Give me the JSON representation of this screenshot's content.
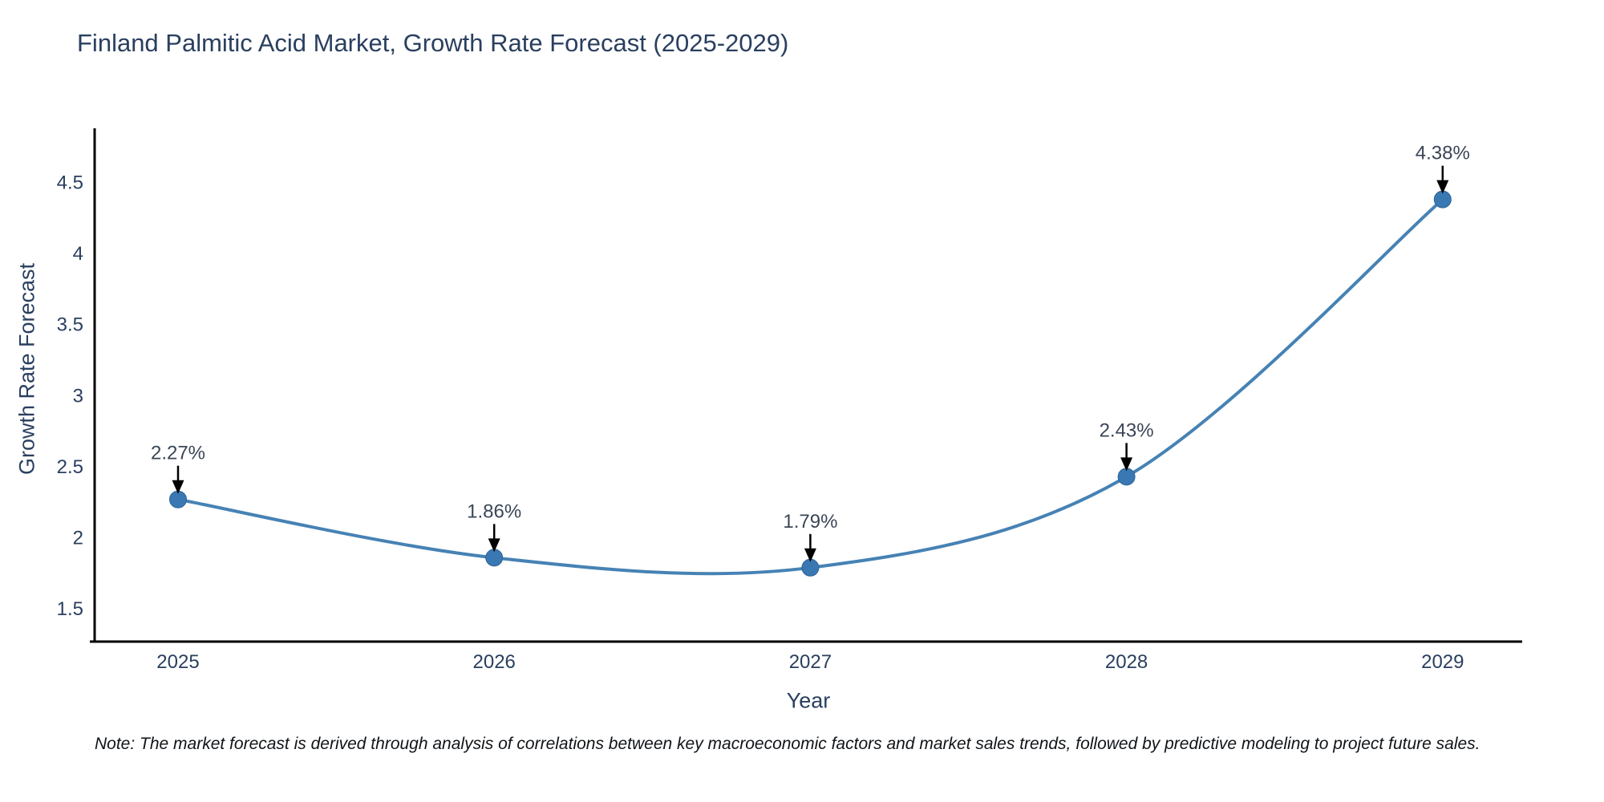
{
  "chart_data": {
    "type": "line",
    "title": "Finland Palmitic Acid Market, Growth Rate Forecast (2025-2029)",
    "xlabel": "Year",
    "ylabel": "Growth Rate Forecast",
    "categories": [
      "2025",
      "2026",
      "2027",
      "2028",
      "2029"
    ],
    "series": [
      {
        "name": "Growth Rate Forecast",
        "values": [
          2.27,
          1.86,
          1.79,
          2.43,
          4.38
        ],
        "point_labels": [
          "2.27%",
          "1.86%",
          "1.79%",
          "2.43%",
          "4.38%"
        ]
      }
    ],
    "yticks": [
      1.5,
      2,
      2.5,
      3,
      3.5,
      4,
      4.5
    ],
    "ylim": [
      1.27,
      4.88
    ],
    "grid": false,
    "legend_visible": false,
    "line_shape": "spline",
    "colors": {
      "line": "#4682b4",
      "marker_fill": "#3a78b3",
      "marker_stroke": "#2e6396",
      "axis_line": "#000000",
      "tick_text": "#2a3f5f",
      "annotation_text": "#3b4657",
      "annotation_arrow": "#000000"
    },
    "note": "Note: The market forecast is derived through analysis of correlations between key macroeconomic factors and market sales trends, followed by predictive modeling to project future sales."
  }
}
